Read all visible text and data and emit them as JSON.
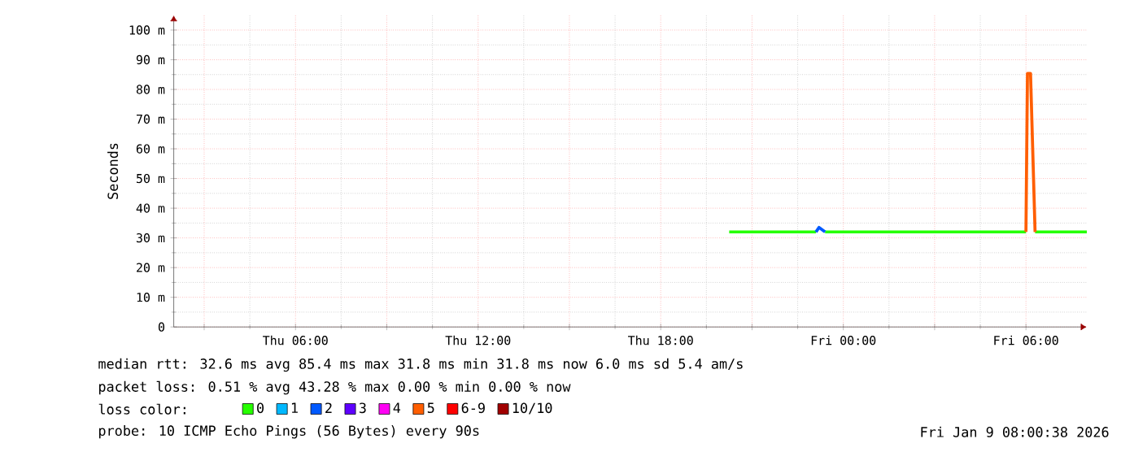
{
  "chart_data": {
    "type": "line",
    "ylabel": "Seconds",
    "xlim": [
      "2026-01-08T02:00",
      "2026-01-09T08:00"
    ],
    "ylim": [
      0,
      105
    ],
    "xticks": [
      {
        "value": "2026-01-08T03:00",
        "label": null
      },
      {
        "value": "2026-01-08T06:00",
        "label": "Thu 06:00"
      },
      {
        "value": "2026-01-08T09:00",
        "label": null
      },
      {
        "value": "2026-01-08T12:00",
        "label": "Thu 12:00"
      },
      {
        "value": "2026-01-08T15:00",
        "label": null
      },
      {
        "value": "2026-01-08T18:00",
        "label": "Thu 18:00"
      },
      {
        "value": "2026-01-08T21:00",
        "label": null
      },
      {
        "value": "2026-01-09T00:00",
        "label": "Fri 00:00"
      },
      {
        "value": "2026-01-09T03:00",
        "label": null
      },
      {
        "value": "2026-01-09T06:00",
        "label": "Fri 06:00"
      }
    ],
    "yticks": [
      0,
      {
        "value": 10,
        "label": "10 m"
      },
      {
        "value": 20,
        "label": "20 m"
      },
      {
        "value": 30,
        "label": "30 m"
      },
      {
        "value": 40,
        "label": "40 m"
      },
      {
        "value": 50,
        "label": "50 m"
      },
      {
        "value": 60,
        "label": "60 m"
      },
      {
        "value": 70,
        "label": "70 m"
      },
      {
        "value": 80,
        "label": "80 m"
      },
      {
        "value": 90,
        "label": "90 m"
      },
      {
        "value": 100,
        "label": "100 m"
      }
    ],
    "grid": true,
    "marker": "none",
    "legend": "bottom",
    "legend_title": "loss color:",
    "series": [
      {
        "name": "0",
        "color": "#26ff00",
        "x": [
          "2026-01-08T20:15",
          "2026-01-08T22:00",
          "2026-01-08T23:06",
          "2026-01-08T23:12",
          "2026-01-08T23:24",
          "2026-01-09T01:00",
          "2026-01-09T03:00",
          "2026-01-09T05:00",
          "2026-01-09T06:00",
          "2026-01-09T06:03",
          "2026-01-09T06:18",
          "2026-01-09T07:00",
          "2026-01-09T08:00"
        ],
        "values": [
          32,
          32,
          32,
          null,
          32,
          32,
          32,
          32,
          32,
          null,
          32,
          32,
          32
        ]
      },
      {
        "name": "1",
        "color": "#00b8ff"
      },
      {
        "name": "2",
        "color": "#0059ff",
        "x": [
          "2026-01-08T23:06",
          "2026-01-08T23:12",
          "2026-01-08T23:24"
        ],
        "values": [
          32,
          33.5,
          32
        ]
      },
      {
        "name": "3",
        "color": "#5e00ff"
      },
      {
        "name": "4",
        "color": "#ff00f4"
      },
      {
        "name": "5",
        "color": "#ff5e00",
        "x": [
          "2026-01-09T06:00",
          "2026-01-09T06:03",
          "2026-01-09T06:09",
          "2026-01-09T06:18"
        ],
        "values": [
          32,
          85.4,
          85.4,
          32
        ]
      },
      {
        "name": "6-9",
        "color": "#ff0000"
      },
      {
        "name": "10/10",
        "color": "#a10000"
      }
    ],
    "annotations": [
      "median rtt:  32.6 ms avg  85.4 ms max  31.8 ms min  31.8 ms now  6.0 ms sd  5.4   am/s",
      "packet loss: 0.51 % avg  43.28 % max  0.00 % min  0.00 % now",
      "probe:       10 ICMP Echo Pings (56 Bytes) every 90s",
      "Fri Jan  9 08:00:38 2026"
    ]
  }
}
